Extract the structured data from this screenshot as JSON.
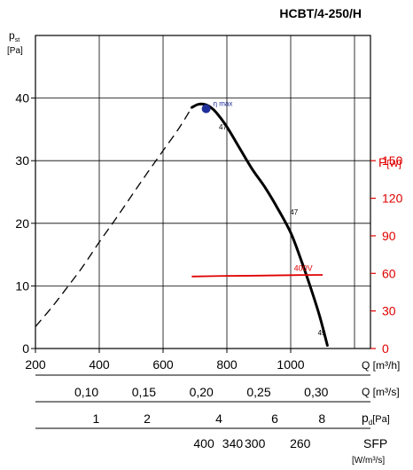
{
  "chart_data": {
    "type": "line",
    "title": "HCBT/4-250/H",
    "y_label": "p",
    "y_label_sub": "st",
    "y_unit": "[Pa]",
    "ylim": [
      0,
      50
    ],
    "y_ticks": [
      0,
      10,
      20,
      30,
      40
    ],
    "xlim": [
      200,
      1250
    ],
    "x_ticks": [
      200,
      400,
      600,
      800,
      1000
    ],
    "x_label": "Q [m³/h]",
    "grid": true,
    "pressure_curve_dashed": {
      "x": [
        200,
        250,
        300,
        350,
        400,
        450,
        500,
        550,
        600,
        650,
        690
      ],
      "y": [
        3.5,
        6.5,
        9.8,
        13.2,
        17.0,
        20.6,
        24.3,
        28.0,
        31.6,
        35.2,
        38.5
      ]
    },
    "pressure_curve_solid": {
      "x": [
        690,
        710,
        730,
        750,
        770,
        800,
        840,
        880,
        920,
        960,
        1000,
        1030,
        1060,
        1090,
        1115
      ],
      "y": [
        38.5,
        39.0,
        39.0,
        38.5,
        37.5,
        35.4,
        32.0,
        28.6,
        25.7,
        22.3,
        18.5,
        14.5,
        10.1,
        5.3,
        0.5
      ]
    },
    "eta_max": {
      "x": 735,
      "y": 38.3,
      "label": "η max"
    },
    "curve_labels": [
      {
        "x": 775,
        "y": 35.0,
        "text": "47"
      },
      {
        "x": 998,
        "y": 21.4,
        "text": "47"
      },
      {
        "x": 1085,
        "y": 2.1,
        "text": "49"
      }
    ],
    "power_axis": {
      "label": "P",
      "unit": "[W]",
      "ticks": [
        0,
        30,
        60,
        90,
        120,
        150
      ],
      "range": [
        0,
        150
      ],
      "color": "#e00000"
    },
    "power_series": {
      "name": "400V",
      "x": [
        690,
        800,
        900,
        1000,
        1100
      ],
      "p_w": [
        57.5,
        58.0,
        58.2,
        58.6,
        58.8
      ]
    },
    "secondary_axes": [
      {
        "unit": "Q [m³/s]",
        "ticks": [
          "0,10",
          "0,15",
          "0,20",
          "0,25",
          "0,30"
        ],
        "x_at_Q": [
          360,
          540,
          720,
          900,
          1080
        ]
      },
      {
        "unit": "p",
        "unit_sub": "d",
        "unit_suffix": "[Pa]",
        "ticks": [
          "1",
          "2",
          "4",
          "6",
          "8"
        ],
        "x_at_Q": [
          390,
          550,
          775,
          950,
          1098
        ]
      },
      {
        "unit": "SFP",
        "unit2": "[W/m³/s]",
        "ticks": [
          "400",
          "340",
          "300",
          "260"
        ],
        "x_at_Q": [
          728,
          818,
          888,
          1030
        ]
      }
    ]
  }
}
